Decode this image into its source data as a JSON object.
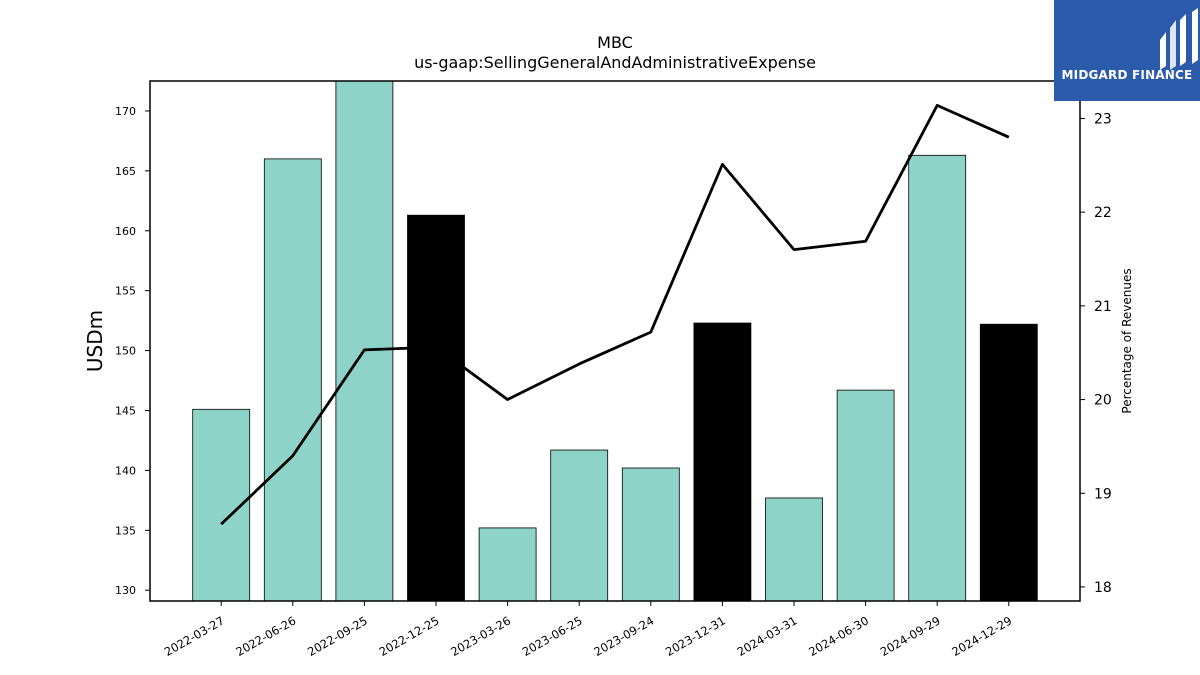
{
  "chart_data": {
    "type": "bar",
    "title": "MBC",
    "subtitle": "us-gaap:SellingGeneralAndAdministrativeExpense",
    "ylabel": "USDm",
    "y2label": "Percentage of Revenues",
    "categories": [
      "2022-03-27",
      "2022-06-26",
      "2022-09-25",
      "2022-12-25",
      "2023-03-26",
      "2023-06-25",
      "2023-09-24",
      "2023-12-31",
      "2024-03-31",
      "2024-06-30",
      "2024-09-29",
      "2024-12-29"
    ],
    "series": [
      {
        "type": "bar",
        "values": [
          145.1,
          166.0,
          172.5,
          161.3,
          135.2,
          141.7,
          140.2,
          152.3,
          137.7,
          146.7,
          166.3,
          152.2
        ]
      },
      {
        "type": "line",
        "axis": "right",
        "values": [
          18.67,
          19.4,
          20.53,
          20.56,
          20.0,
          20.38,
          20.72,
          22.51,
          21.6,
          21.69,
          23.14,
          22.8
        ]
      }
    ],
    "bar_colors": [
      "#8dd3c7",
      "#8dd3c7",
      "#8dd3c7",
      "#000000",
      "#8dd3c7",
      "#8dd3c7",
      "#8dd3c7",
      "#000000",
      "#8dd3c7",
      "#8dd3c7",
      "#8dd3c7",
      "#000000"
    ],
    "line_color": "#000000",
    "ylim": [
      129.1,
      172.5
    ],
    "y2lim": [
      17.85,
      23.4
    ],
    "yticks": [
      130,
      135,
      140,
      145,
      150,
      155,
      160,
      165,
      170
    ],
    "y2ticks": [
      18,
      19,
      20,
      21,
      22,
      23
    ],
    "grid": false
  },
  "logo": {
    "text": "MIDGARD FINANCE",
    "background": "#2d5bab"
  }
}
